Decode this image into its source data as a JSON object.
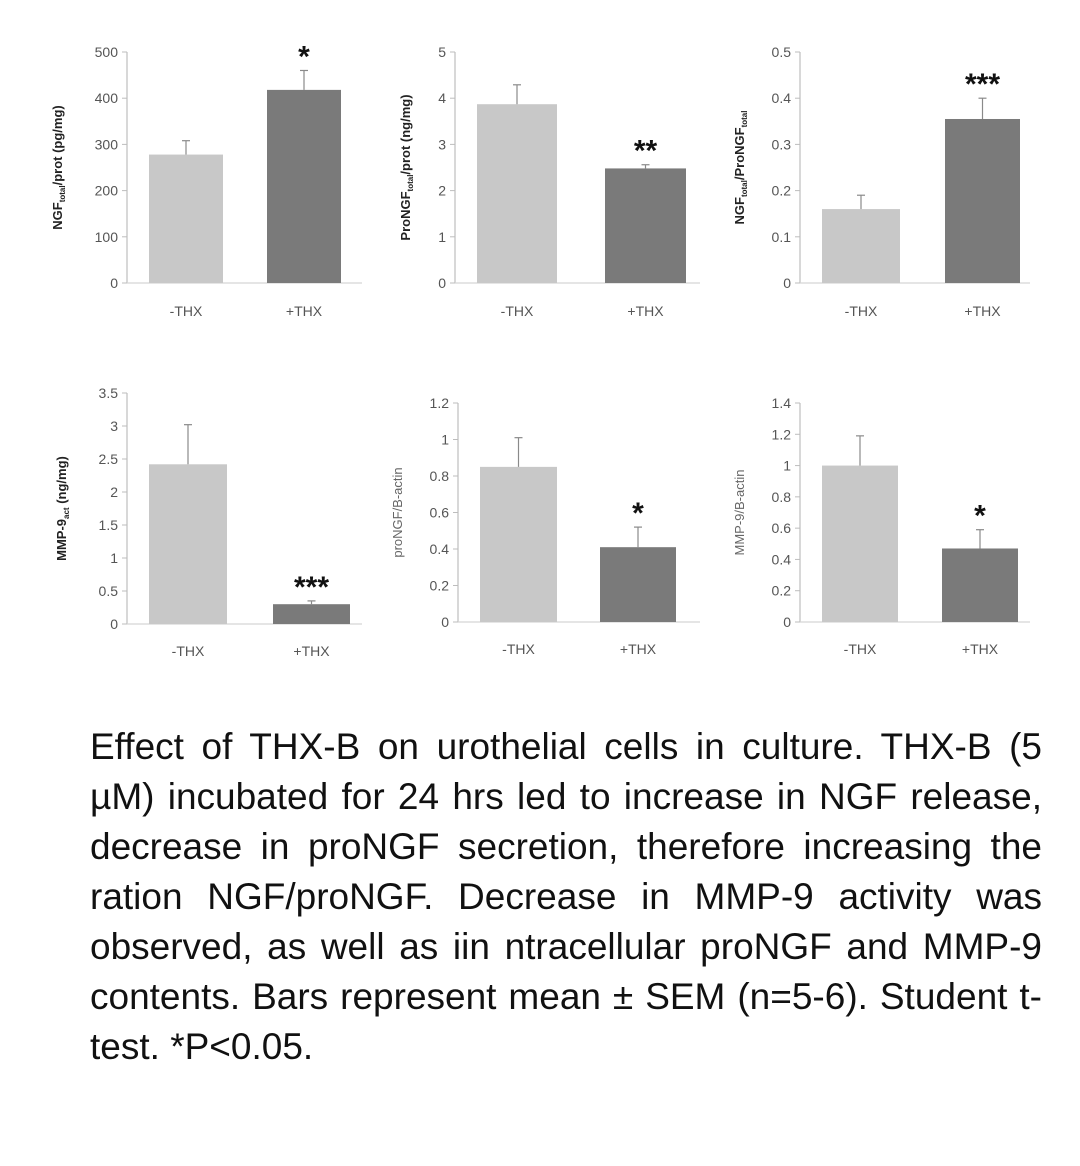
{
  "chart_data": [
    {
      "type": "bar",
      "ylabel_parts": [
        "NGF",
        "total",
        "/prot (pg/mg)"
      ],
      "categories": [
        "-THX",
        "+THX"
      ],
      "values": [
        278,
        418
      ],
      "errors": [
        30,
        42
      ],
      "ylim": [
        0,
        500
      ],
      "yticks": [
        "0",
        "100",
        "200",
        "300",
        "400",
        "500"
      ],
      "significance": [
        "",
        "*"
      ],
      "colors": [
        "#c8c8c8",
        "#7a7a7a"
      ]
    },
    {
      "type": "bar",
      "ylabel_parts": [
        "ProNGF",
        "total",
        "/prot (ng/mg)"
      ],
      "categories": [
        "-THX",
        "+THX"
      ],
      "values": [
        3.87,
        2.48
      ],
      "errors": [
        0.42,
        0.08
      ],
      "ylim": [
        0,
        5
      ],
      "yticks": [
        "0",
        "1",
        "2",
        "3",
        "4",
        "5"
      ],
      "significance": [
        "",
        "**"
      ],
      "colors": [
        "#c8c8c8",
        "#7a7a7a"
      ]
    },
    {
      "type": "bar",
      "ylabel_parts": [
        "NGF",
        "total",
        "/ProNGF",
        "total",
        ""
      ],
      "categories": [
        "-THX",
        "+THX"
      ],
      "values": [
        0.16,
        0.355
      ],
      "errors": [
        0.03,
        0.045
      ],
      "ylim": [
        0,
        0.5
      ],
      "yticks": [
        "0",
        "0.1",
        "0.2",
        "0.3",
        "0.4",
        "0.5"
      ],
      "significance": [
        "",
        "***"
      ],
      "colors": [
        "#c8c8c8",
        "#7a7a7a"
      ]
    },
    {
      "type": "bar",
      "ylabel_parts": [
        "MMP-9",
        "act",
        " (ng/mg)"
      ],
      "categories": [
        "-THX",
        "+THX"
      ],
      "values": [
        2.42,
        0.3
      ],
      "errors": [
        0.6,
        0.05
      ],
      "ylim": [
        0,
        3.5
      ],
      "yticks": [
        "0",
        "0.5",
        "1",
        "1.5",
        "2",
        "2.5",
        "3",
        "3.5"
      ],
      "significance": [
        "",
        "***"
      ],
      "colors": [
        "#c8c8c8",
        "#7a7a7a"
      ]
    },
    {
      "type": "bar",
      "ylabel": "proNGF/B-actin",
      "categories": [
        "-THX",
        "+THX"
      ],
      "values": [
        0.85,
        0.41
      ],
      "errors": [
        0.16,
        0.11
      ],
      "ylim": [
        0,
        1.2
      ],
      "yticks": [
        "0",
        "0.2",
        "0.4",
        "0.6",
        "0.8",
        "1",
        "1.2"
      ],
      "significance": [
        "",
        "*"
      ],
      "colors": [
        "#c8c8c8",
        "#7a7a7a"
      ]
    },
    {
      "type": "bar",
      "ylabel": "MMP-9/B-actin",
      "categories": [
        "-THX",
        "+THX"
      ],
      "values": [
        1.0,
        0.47
      ],
      "errors": [
        0.19,
        0.12
      ],
      "ylim": [
        0,
        1.4
      ],
      "yticks": [
        "0",
        "0.2",
        "0.4",
        "0.6",
        "0.8",
        "1",
        "1.2",
        "1.4"
      ],
      "significance": [
        "",
        "*"
      ],
      "colors": [
        "#c8c8c8",
        "#7a7a7a"
      ]
    }
  ],
  "caption": "Effect of THX-B on urothelial cells in culture. THX-B (5 µM) incubated for 24 hrs led to increase in NGF release, decrease in proNGF secretion, therefore increasing the ration NGF/proNGF. Decrease in MMP-9 activity was observed, as well as iin ntracellular proNGF and MMP-9 contents. Bars represent mean ± SEM (n=5-6). Student t-test. *P<0.05."
}
